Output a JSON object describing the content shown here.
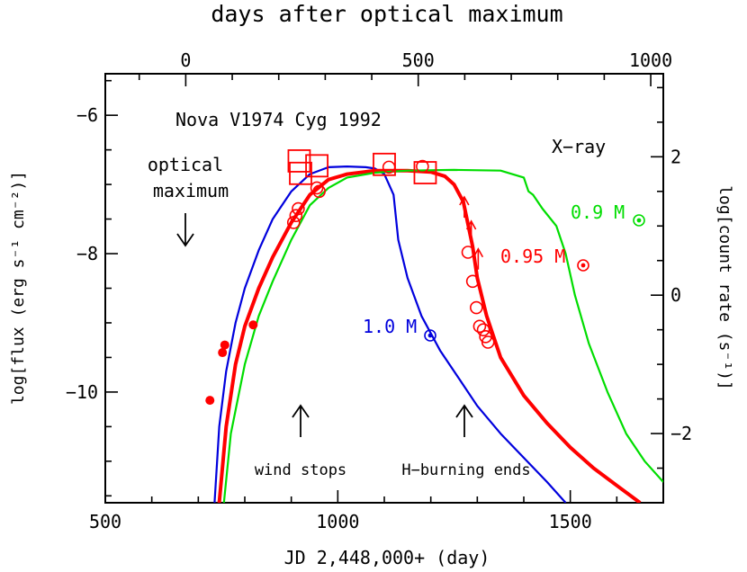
{
  "chart_data": {
    "type": "line",
    "title": "Nova V1974 Cyg 1992",
    "top_axis_label": "days after optical maximum",
    "xlabel": "JD 2,448,000+ (day)",
    "ylabel": "log[flux (erg s⁻¹ cm⁻²)]",
    "ylabel_right": "log[count rate (s⁻¹)]",
    "xlim": [
      500,
      1700
    ],
    "ylim": [
      -11.6,
      -5.4
    ],
    "x_ticks": [
      "500",
      "1000",
      "1500"
    ],
    "y_ticks": [
      "−6",
      "−8",
      "−10"
    ],
    "top_ticks": [
      "0",
      "500",
      "1000"
    ],
    "top_tick_positions": [
      673,
      1173,
      1673
    ],
    "right_ticks": [
      "2",
      "0",
      "−2"
    ],
    "right_tick_positions": [
      -6.6,
      -8.6,
      -10.6
    ],
    "series": [
      {
        "name": "1.0 M⊙",
        "color": "#0000dd",
        "x": [
          735,
          745,
          760,
          780,
          800,
          830,
          860,
          900,
          940,
          980,
          1020,
          1060,
          1080,
          1100,
          1110,
          1120,
          1130,
          1150,
          1180,
          1220,
          1260,
          1300,
          1350,
          1400,
          1450,
          1490
        ],
        "y": [
          -11.6,
          -10.5,
          -9.7,
          -9.0,
          -8.5,
          -7.95,
          -7.5,
          -7.1,
          -6.85,
          -6.75,
          -6.74,
          -6.75,
          -6.77,
          -6.85,
          -7.0,
          -7.15,
          -7.8,
          -8.35,
          -8.9,
          -9.4,
          -9.8,
          -10.2,
          -10.6,
          -10.95,
          -11.3,
          -11.6
        ]
      },
      {
        "name": "0.95 M⊙",
        "color": "#ff0000",
        "x": [
          745,
          760,
          780,
          800,
          830,
          860,
          900,
          940,
          980,
          1020,
          1080,
          1150,
          1200,
          1230,
          1250,
          1270,
          1290,
          1300,
          1320,
          1350,
          1400,
          1450,
          1500,
          1550,
          1600,
          1650
        ],
        "y": [
          -11.6,
          -10.5,
          -9.6,
          -9.05,
          -8.5,
          -8.05,
          -7.55,
          -7.15,
          -6.93,
          -6.85,
          -6.8,
          -6.8,
          -6.82,
          -6.88,
          -7.0,
          -7.25,
          -7.9,
          -8.35,
          -8.9,
          -9.5,
          -10.05,
          -10.45,
          -10.8,
          -11.1,
          -11.35,
          -11.6
        ]
      },
      {
        "name": "0.9 M⊙",
        "color": "#00dd00",
        "x": [
          755,
          770,
          800,
          830,
          860,
          900,
          940,
          980,
          1020,
          1080,
          1150,
          1250,
          1350,
          1400,
          1410,
          1420,
          1440,
          1470,
          1490,
          1510,
          1540,
          1580,
          1620,
          1660,
          1700
        ],
        "y": [
          -11.6,
          -10.6,
          -9.6,
          -8.9,
          -8.4,
          -7.8,
          -7.3,
          -7.05,
          -6.9,
          -6.83,
          -6.8,
          -6.79,
          -6.8,
          -6.9,
          -7.1,
          -7.15,
          -7.35,
          -7.6,
          -8.0,
          -8.6,
          -9.3,
          -10.0,
          -10.6,
          -11.0,
          -11.3
        ]
      }
    ],
    "observations": {
      "xray_squares": {
        "x": [
          917,
          920,
          955,
          1100,
          1188
        ],
        "y": [
          -6.66,
          -6.84,
          -6.73,
          -6.71,
          -6.83
        ]
      },
      "xray_circles": {
        "x": [
          905,
          910,
          915,
          955,
          960,
          1110,
          1182,
          1280,
          1290,
          1298,
          1305,
          1313,
          1318,
          1323
        ],
        "y": [
          -7.55,
          -7.45,
          -7.35,
          -7.05,
          -7.1,
          -6.75,
          -6.74,
          -7.98,
          -8.4,
          -8.78,
          -9.05,
          -9.1,
          -9.2,
          -9.28
        ]
      },
      "uv_dots": {
        "x": [
          725,
          752,
          757,
          818
        ],
        "y": [
          -10.12,
          -9.43,
          -9.32,
          -9.03
        ]
      },
      "upper_limit_arrows": {
        "x": [
          1272,
          1287,
          1302
        ],
        "y": [
          -7.35,
          -7.7,
          -8.1
        ]
      }
    },
    "annotations": {
      "label_xray": "X−ray",
      "label_optical_maximum_1": "optical",
      "label_optical_maximum_2": "maximum",
      "label_wind_stops": "wind stops",
      "label_h_burning_ends": "H−burning ends",
      "label_10": "1.0 M",
      "label_095": "0.95 M",
      "label_09": "0.9 M"
    }
  }
}
